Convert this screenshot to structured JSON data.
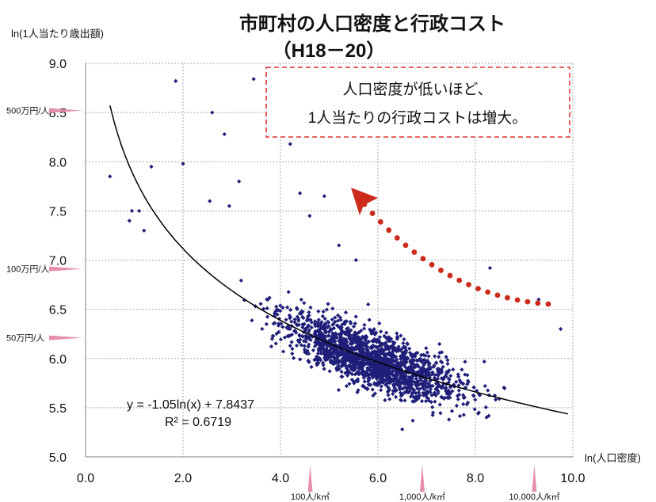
{
  "chart_data": {
    "type": "scatter",
    "title": "市町村の人口密度と行政コスト",
    "subtitle": "（H18－20）",
    "ylabel": "ln(1人当たり歳出額)",
    "xlabel": "ln(人口密度)",
    "xlim": [
      0.0,
      10.0
    ],
    "ylim": [
      5.0,
      9.0
    ],
    "xticks": [
      "0.0",
      "2.0",
      "4.0",
      "6.0",
      "8.0",
      "10.0"
    ],
    "yticks": [
      "5.0",
      "5.5",
      "6.0",
      "6.5",
      "7.0",
      "7.5",
      "8.0",
      "8.5",
      "9.0"
    ],
    "grid": true,
    "point_color": "#1f1f7a",
    "trend_color": "#000000",
    "trendline": {
      "type": "log",
      "a": -1.05,
      "b": 7.8437,
      "x_range": [
        0.5,
        9.9
      ],
      "equation": "y = -1.05ln(x) + 7.8437",
      "r2": "R² = 0.6719"
    },
    "y_markers": [
      {
        "label": "500万円/人",
        "y": 8.52
      },
      {
        "label": "100万円/人",
        "y": 6.91
      },
      {
        "label": "50万円/人",
        "y": 6.21
      }
    ],
    "x_markers": [
      {
        "label": "100人/k㎡",
        "x": 4.61
      },
      {
        "label": "1,000人/k㎡",
        "x": 6.91
      },
      {
        "label": "10,000人/k㎡",
        "x": 9.21
      }
    ],
    "callout": {
      "lines": [
        "人口密度が低いほど、",
        "1人当たりの行政コストは増大。"
      ],
      "border_color": "#e03030"
    },
    "arrow_color": "#cc2a1a",
    "outlier_points": [
      [
        0.5,
        7.85
      ],
      [
        1.85,
        8.82
      ],
      [
        2.6,
        8.5
      ],
      [
        3.45,
        8.84
      ],
      [
        2.85,
        8.28
      ],
      [
        4.2,
        8.18
      ],
      [
        2.0,
        7.98
      ],
      [
        1.35,
        7.95
      ],
      [
        3.15,
        7.8
      ],
      [
        4.4,
        7.68
      ],
      [
        4.9,
        7.65
      ],
      [
        2.55,
        7.6
      ],
      [
        1.1,
        7.5
      ],
      [
        0.9,
        7.4
      ],
      [
        2.95,
        7.55
      ],
      [
        4.6,
        7.45
      ],
      [
        5.2,
        7.15
      ],
      [
        5.55,
        7.0
      ],
      [
        8.3,
        6.92
      ],
      [
        9.3,
        6.6
      ],
      [
        9.75,
        6.3
      ],
      [
        0.95,
        7.5
      ],
      [
        1.2,
        7.3
      ],
      [
        5.8,
        6.55
      ],
      [
        6.5,
        5.28
      ]
    ],
    "n_points": 1750,
    "scatter_spread": 0.28
  },
  "markers_unit": "ln"
}
